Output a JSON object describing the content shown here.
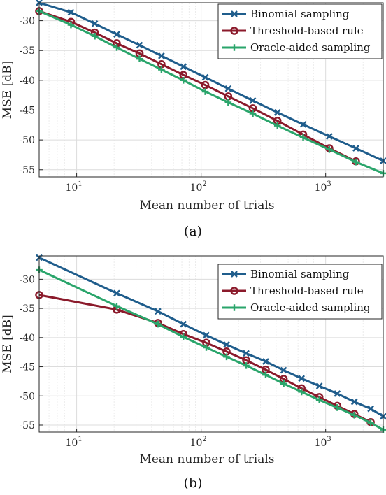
{
  "chart_data": [
    {
      "type": "line",
      "caption": "(a)",
      "xlabel": "Mean number of trials",
      "ylabel": "MSE [dB]",
      "xscale": "log",
      "xlim": [
        5,
        2900
      ],
      "ylim": [
        -56.2,
        -27
      ],
      "yticks": [
        -30,
        -35,
        -40,
        -45,
        -50,
        -55
      ],
      "xticks": [
        {
          "value": 10,
          "label": "10^1"
        },
        {
          "value": 100,
          "label": "10^2"
        },
        {
          "value": 1000,
          "label": "10^3"
        }
      ],
      "grid": true,
      "legend_position": "top-right",
      "series": [
        {
          "name": "Binomial sampling",
          "color": "#1f5d8c",
          "marker": "x",
          "x": [
            5,
            9,
            14,
            21,
            32,
            48,
            72,
            108,
            165,
            260,
            410,
            660,
            1070,
            1750,
            2900
          ],
          "y": [
            -27,
            -28.6,
            -30.5,
            -32.3,
            -34.1,
            -35.9,
            -37.7,
            -39.5,
            -41.4,
            -43.4,
            -45.4,
            -47.4,
            -49.4,
            -51.4,
            -53.5
          ]
        },
        {
          "name": "Threshold-based rule",
          "color": "#8b1a2b",
          "marker": "o",
          "x": [
            5,
            9,
            14,
            21,
            32,
            48,
            72,
            108,
            165,
            260,
            410,
            660,
            1070,
            1750
          ],
          "y": [
            -28.4,
            -30.2,
            -32.0,
            -33.8,
            -35.5,
            -37.3,
            -39.1,
            -40.8,
            -42.7,
            -44.7,
            -46.8,
            -49.1,
            -51.4,
            -53.6
          ]
        },
        {
          "name": "Oracle-aided sampling",
          "color": "#2aa56b",
          "marker": "+",
          "x": [
            5,
            9,
            14,
            21,
            32,
            48,
            72,
            108,
            165,
            260,
            410,
            660,
            1070,
            1750,
            2900
          ],
          "y": [
            -28.4,
            -30.7,
            -32.6,
            -34.5,
            -36.4,
            -38.2,
            -40.0,
            -41.9,
            -43.7,
            -45.6,
            -47.6,
            -49.6,
            -51.6,
            -53.7,
            -55.6
          ]
        }
      ]
    },
    {
      "type": "line",
      "caption": "(b)",
      "xlabel": "Mean number of trials",
      "ylabel": "MSE [dB]",
      "xscale": "log",
      "xlim": [
        5,
        2900
      ],
      "ylim": [
        -56.2,
        -26
      ],
      "yticks": [
        -30,
        -35,
        -40,
        -45,
        -50,
        -55
      ],
      "xticks": [
        {
          "value": 10,
          "label": "10^1"
        },
        {
          "value": 100,
          "label": "10^2"
        },
        {
          "value": 1000,
          "label": "10^3"
        }
      ],
      "grid": true,
      "legend_position": "top-right",
      "series": [
        {
          "name": "Binomial sampling",
          "color": "#1f5d8c",
          "marker": "x",
          "x": [
            5,
            21,
            45,
            72,
            110,
            160,
            230,
            330,
            460,
            640,
            890,
            1240,
            1700,
            2300,
            2900
          ],
          "y": [
            -26.3,
            -32.4,
            -35.5,
            -37.7,
            -39.6,
            -41.2,
            -42.7,
            -44.1,
            -45.6,
            -47.0,
            -48.3,
            -49.6,
            -51.0,
            -52.2,
            -53.5
          ]
        },
        {
          "name": "Threshold-based rule",
          "color": "#8b1a2b",
          "marker": "o",
          "x": [
            5,
            21,
            45,
            72,
            110,
            160,
            230,
            330,
            460,
            640,
            890,
            1240,
            1700,
            2300
          ],
          "y": [
            -32.7,
            -35.2,
            -37.5,
            -39.4,
            -40.9,
            -42.4,
            -43.9,
            -45.5,
            -47.1,
            -48.7,
            -50.2,
            -51.7,
            -53.1,
            -54.5
          ]
        },
        {
          "name": "Oracle-aided sampling",
          "color": "#2aa56b",
          "marker": "+",
          "x": [
            5,
            21,
            45,
            72,
            110,
            160,
            230,
            330,
            460,
            640,
            890,
            1240,
            1700,
            2300,
            2900
          ],
          "y": [
            -28.4,
            -34.6,
            -37.7,
            -39.9,
            -41.7,
            -43.3,
            -44.8,
            -46.4,
            -47.9,
            -49.3,
            -50.7,
            -52.0,
            -53.3,
            -54.6,
            -55.8
          ]
        }
      ]
    }
  ]
}
